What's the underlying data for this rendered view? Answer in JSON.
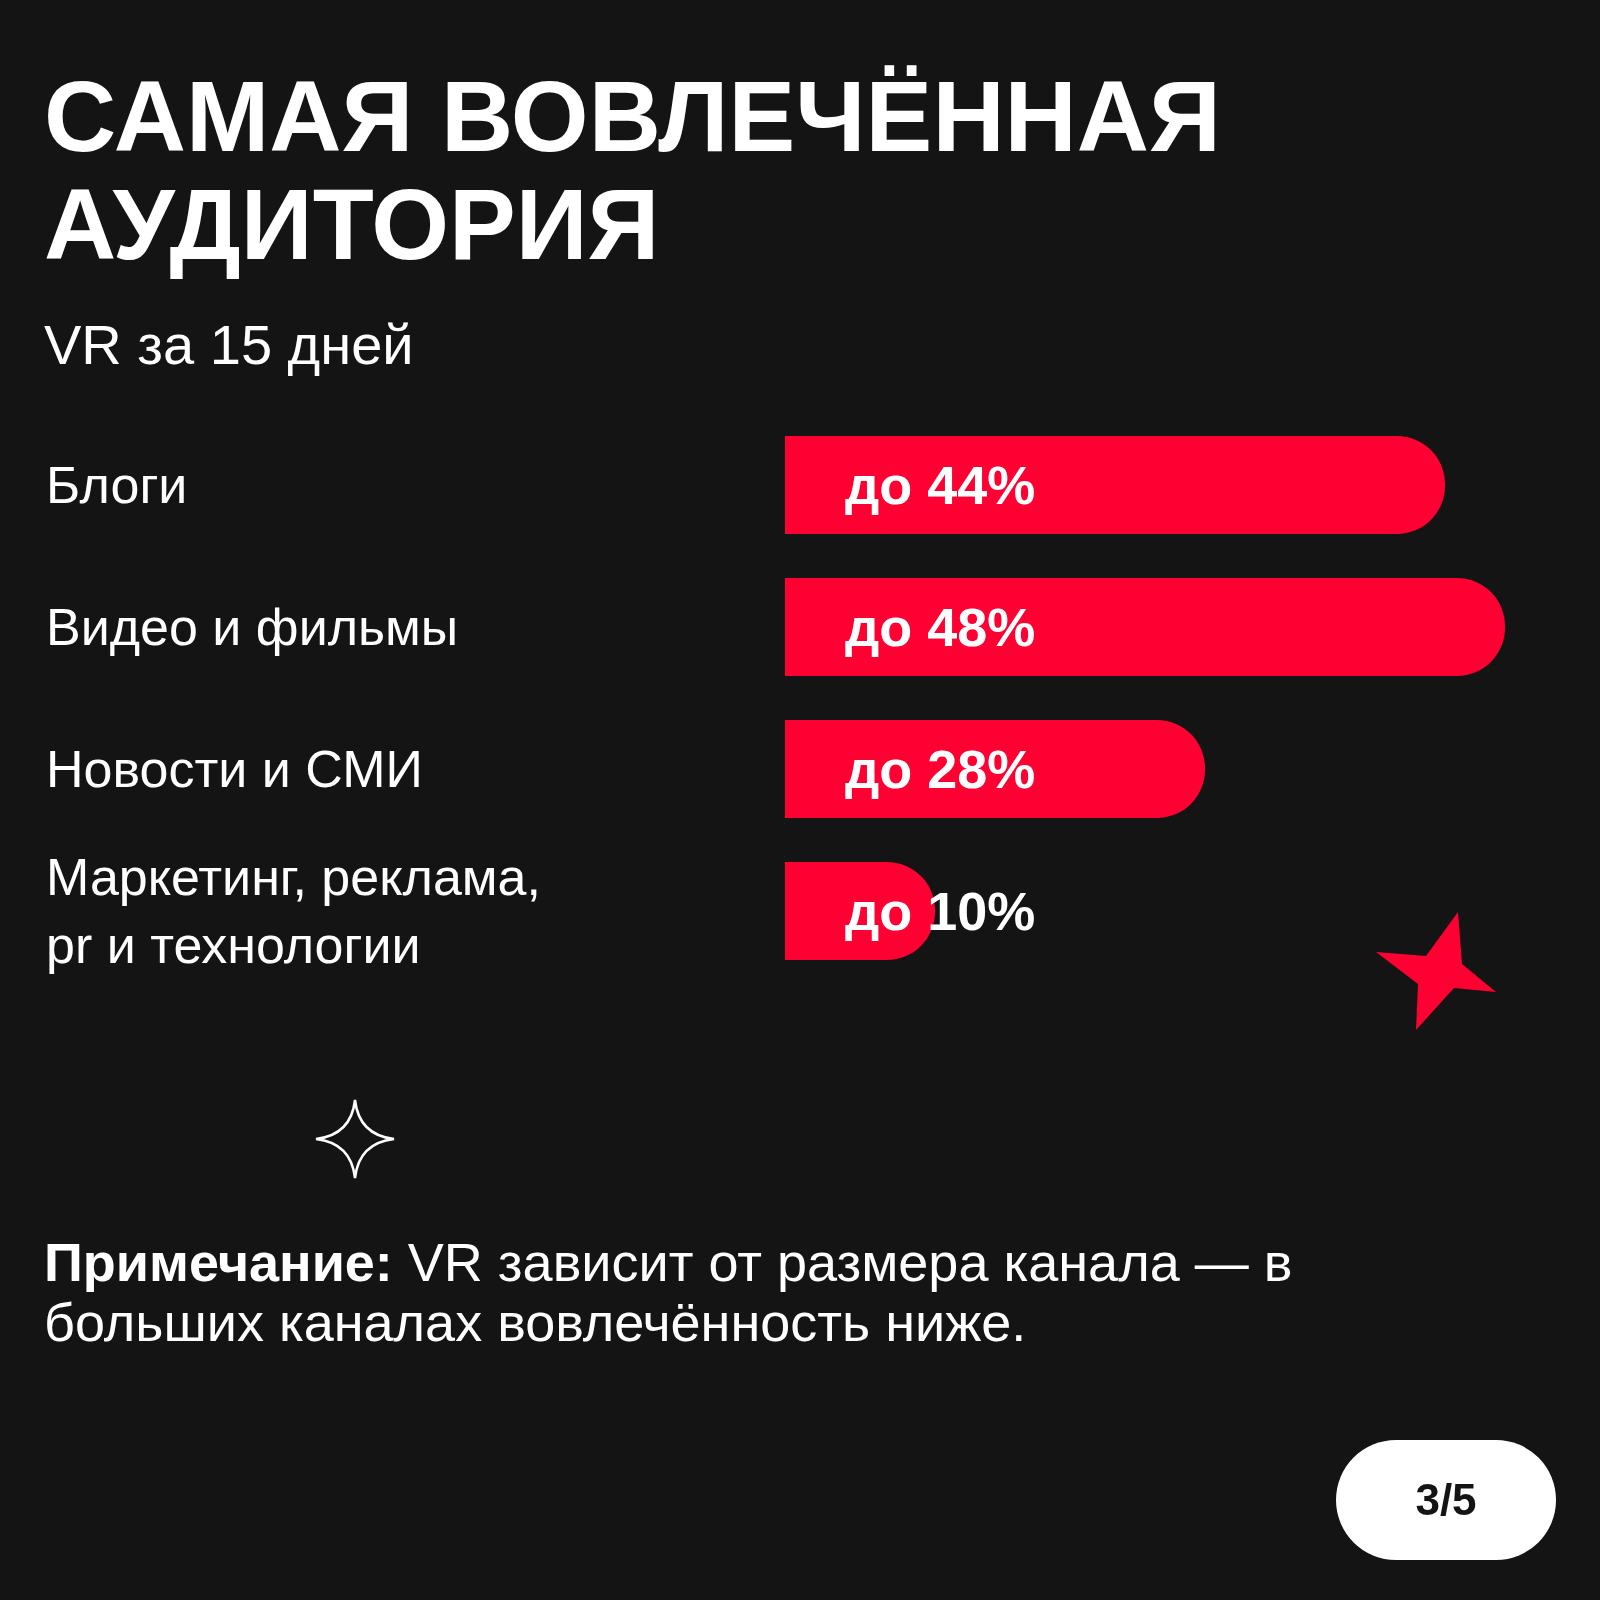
{
  "chart_data": {
    "type": "bar",
    "orientation": "horizontal",
    "title": "САМАЯ ВОВЛЕЧЁННАЯ АУДИТОРИЯ",
    "subtitle": "VR за 15 дней",
    "categories": [
      "Блоги",
      "Видео и фильмы",
      "Новости и СМИ",
      "Маркетинг, реклама, pr и технологии"
    ],
    "values": [
      44,
      48,
      28,
      10
    ],
    "value_labels": [
      "до 44%",
      "до 48%",
      "до 28%",
      "до 10%"
    ],
    "color": "#ff0032",
    "annotations": [
      "Примечание: VR зависит от размера канала — в больших каналах вовлечённость ниже.",
      "3/5"
    ]
  }
}
